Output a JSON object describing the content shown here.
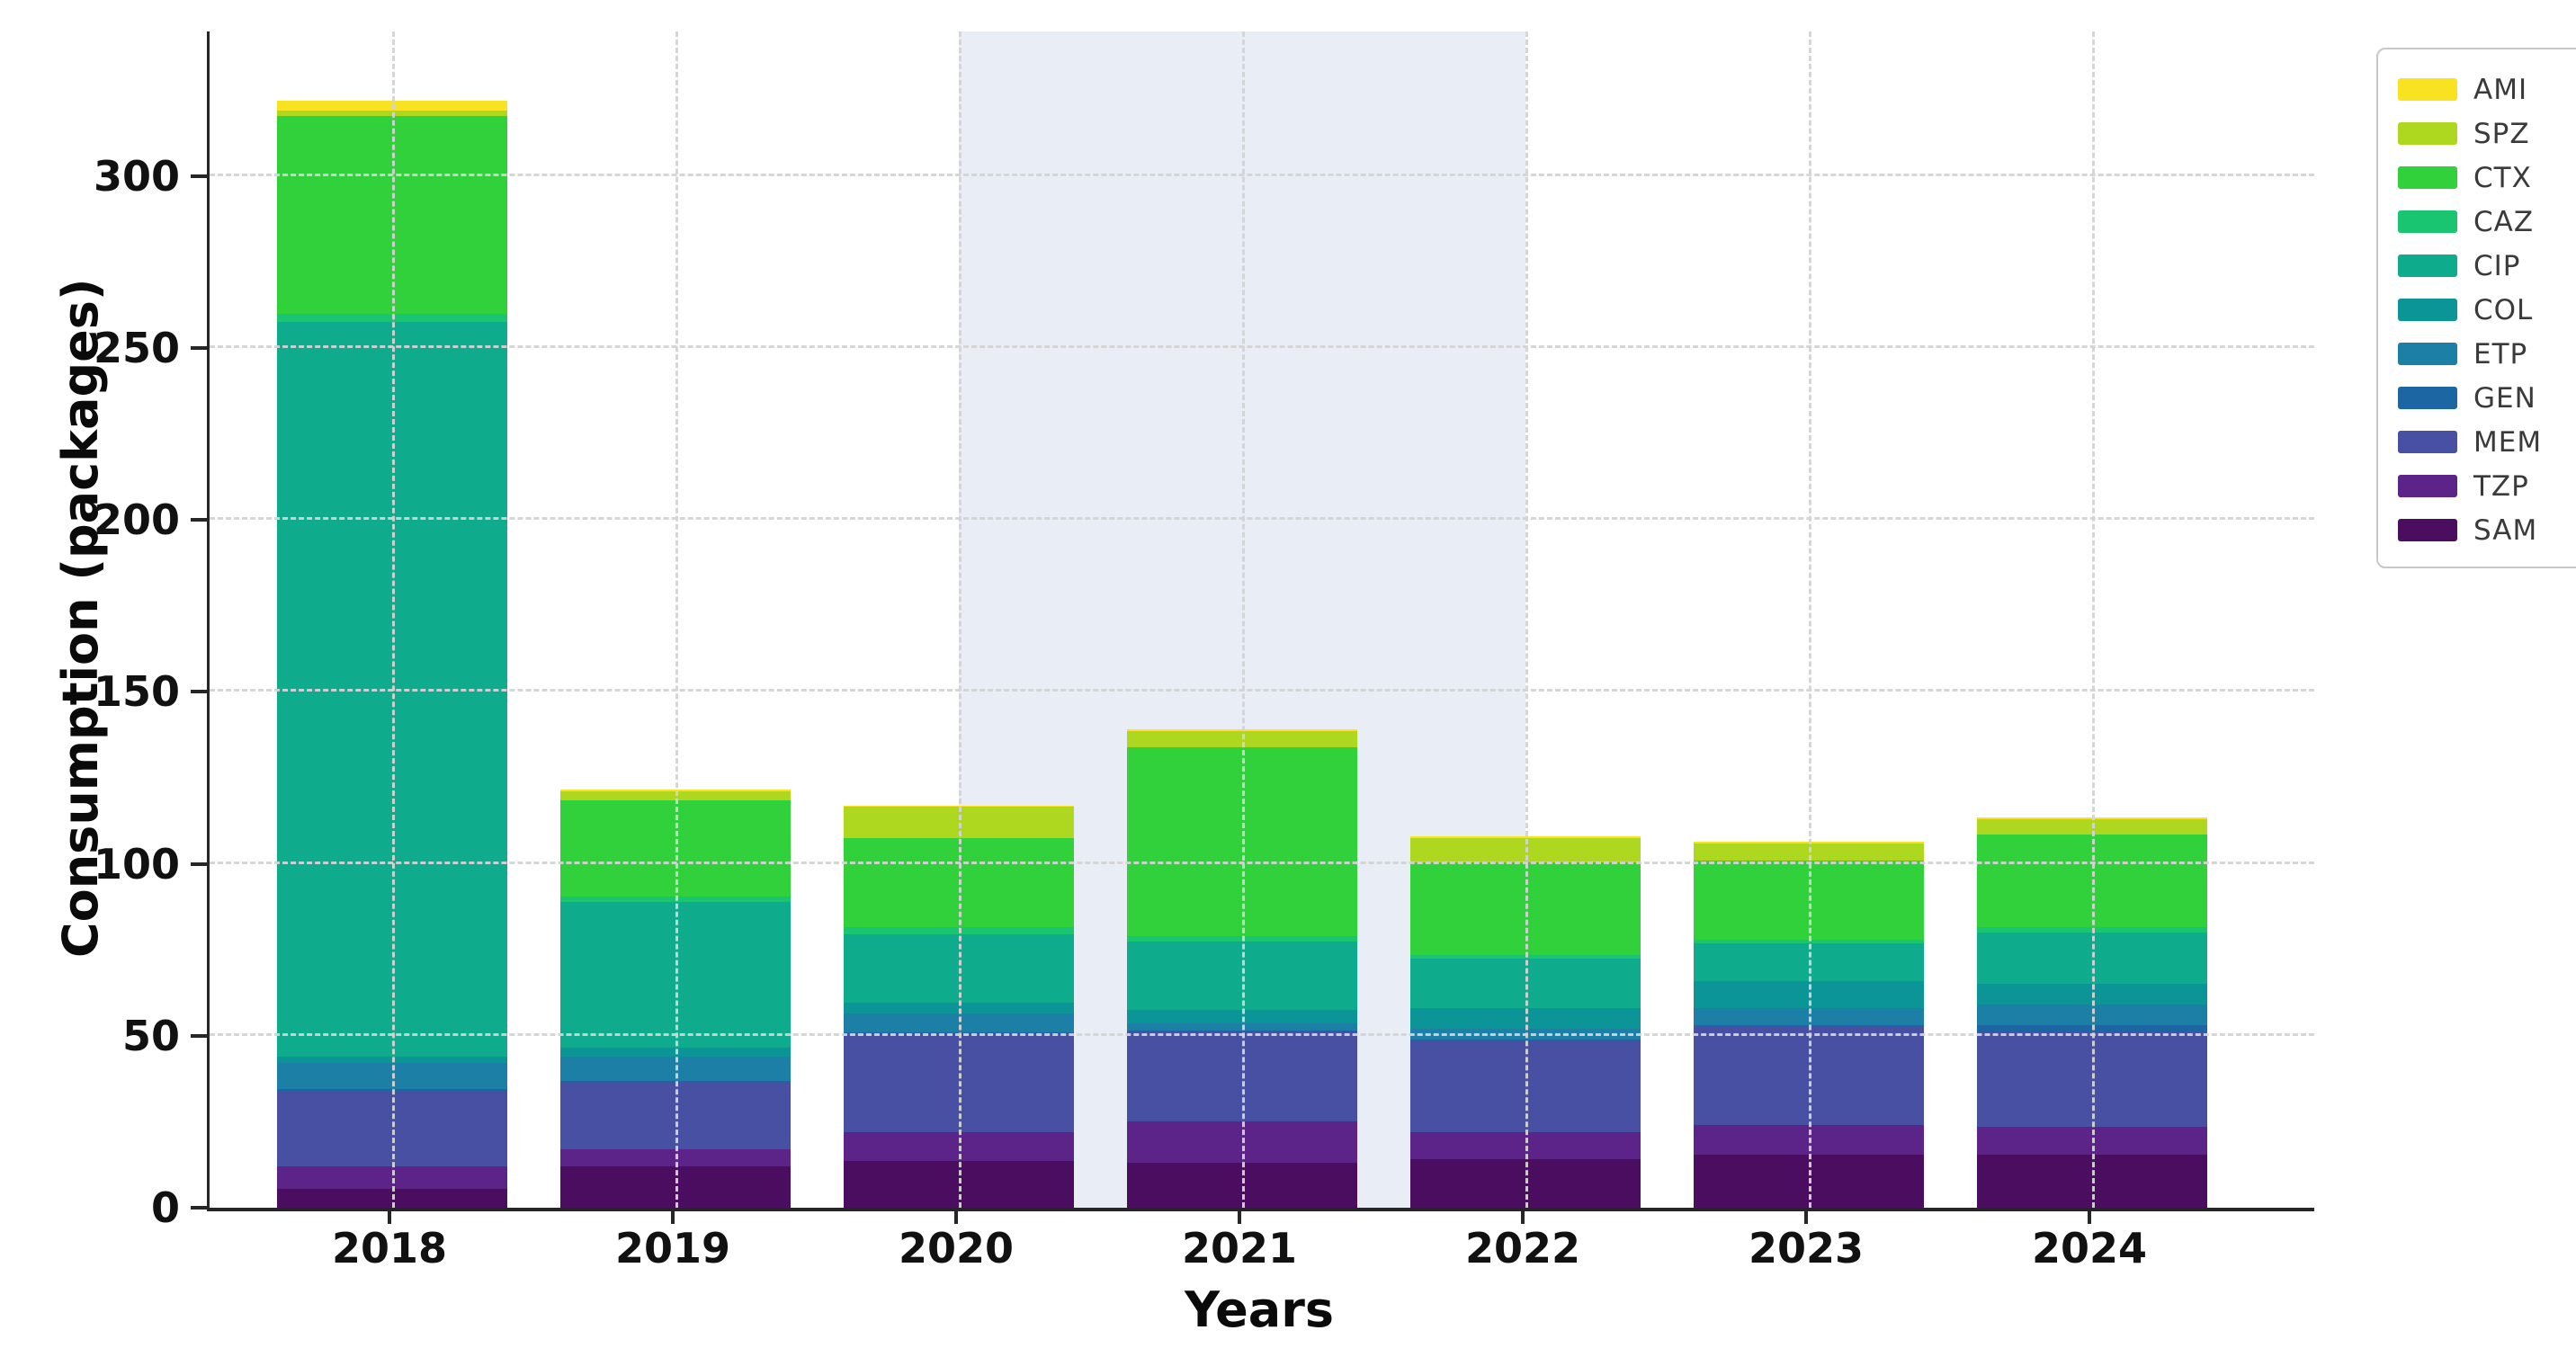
{
  "chart_data": {
    "type": "bar",
    "stacked": true,
    "title": "",
    "xlabel": "Years",
    "ylabel": "Consumption (packages)",
    "categories": [
      "2018",
      "2019",
      "2020",
      "2021",
      "2022",
      "2023",
      "2024"
    ],
    "series": [
      {
        "name": "SAM",
        "color": "#4A0D5F",
        "values": [
          5.5,
          12,
          13.5,
          13,
          14,
          15.5,
          15.5
        ]
      },
      {
        "name": "TZP",
        "color": "#5C2489",
        "values": [
          6.5,
          5,
          8.5,
          12,
          8,
          8.5,
          8
        ]
      },
      {
        "name": "MEM",
        "color": "#4850A3",
        "values": [
          22,
          19.5,
          28.5,
          26,
          26.5,
          28.5,
          27.5
        ]
      },
      {
        "name": "GEN",
        "color": "#1C67A3",
        "values": [
          0.5,
          0.5,
          0.5,
          0.5,
          0.5,
          0.5,
          2
        ]
      },
      {
        "name": "ETP",
        "color": "#1B7FA6",
        "values": [
          7.5,
          7,
          5.5,
          2,
          3,
          5,
          6
        ]
      },
      {
        "name": "COL",
        "color": "#0C9596",
        "values": [
          2,
          2.5,
          3,
          4,
          6,
          8,
          6
        ]
      },
      {
        "name": "CIP",
        "color": "#0EAB8C",
        "values": [
          213.5,
          42.5,
          20,
          20,
          14.5,
          11,
          15
        ]
      },
      {
        "name": "CAZ",
        "color": "#1AC572",
        "values": [
          2.5,
          1.5,
          2,
          1.5,
          1,
          1,
          1.5
        ]
      },
      {
        "name": "CTX",
        "color": "#31D13C",
        "values": [
          57.5,
          28,
          26,
          55,
          27,
          23,
          27
        ]
      },
      {
        "name": "SPZ",
        "color": "#AED81F",
        "values": [
          1.5,
          2.5,
          9,
          4.5,
          7,
          5,
          4.5
        ]
      },
      {
        "name": "AMI",
        "color": "#F9E21F",
        "values": [
          3,
          0.5,
          0.5,
          0.5,
          0.5,
          0.5,
          0.5
        ]
      }
    ],
    "totals": [
      322,
      121.5,
      117,
      139,
      108,
      106.5,
      113.5
    ],
    "ylim": [
      0,
      342
    ],
    "yticks": [
      0,
      50,
      100,
      150,
      200,
      250,
      300
    ],
    "grid": "both-dashed",
    "legend_position": "outside-right",
    "legend_order": [
      "AMI",
      "SPZ",
      "CTX",
      "CAZ",
      "CIP",
      "COL",
      "ETP",
      "GEN",
      "MEM",
      "TZP",
      "SAM"
    ],
    "highlight_span": {
      "from": "2020",
      "to": "2022",
      "color": "#E8EDF6",
      "note": "shaded vertical band between 2020 and 2022 bar centers"
    }
  },
  "labels": {
    "x_axis_title": "Years",
    "y_axis_title": "Consumption (packages)"
  },
  "style_colors": {
    "axis_spine": "#262626",
    "gridline": "#d4d4d4",
    "background": "#ffffff",
    "legend_border": "#c8c8c8",
    "tick_label": "#111111"
  }
}
